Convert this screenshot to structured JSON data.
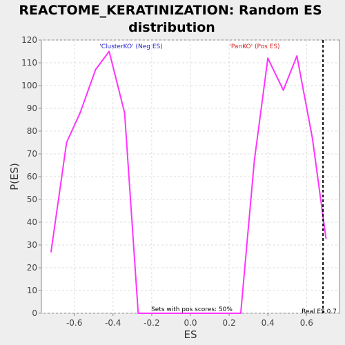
{
  "chart_data": {
    "type": "line",
    "title_line1": "REACTOME_KERATINIZATION: Random ES",
    "title_line2": "distribution",
    "xlabel": "ES",
    "ylabel": "P(ES)",
    "xlim": [
      -0.77,
      0.77
    ],
    "ylim": [
      0,
      120
    ],
    "x_ticks": [
      -0.6,
      -0.4,
      -0.2,
      0.0,
      0.2,
      0.4,
      0.6
    ],
    "x_tick_labels": [
      "-0.6",
      "-0.4",
      "-0.2",
      "0.0",
      "0.2",
      "0.4",
      "0.6"
    ],
    "y_ticks": [
      0,
      10,
      20,
      30,
      40,
      50,
      60,
      70,
      80,
      90,
      100,
      110,
      120
    ],
    "y_tick_labels": [
      "0",
      "10",
      "20",
      "30",
      "40",
      "50",
      "60",
      "70",
      "80",
      "90",
      "100",
      "110",
      "120"
    ],
    "grid": true,
    "series": [
      {
        "color": "#ff33ff",
        "x": [
          -0.72,
          -0.64,
          -0.57,
          -0.49,
          -0.42,
          -0.34,
          -0.27,
          -0.19,
          -0.12,
          -0.04,
          0.03,
          0.11,
          0.18,
          0.26,
          0.33,
          0.4,
          0.48,
          0.55,
          0.63,
          0.7
        ],
        "y": [
          27,
          75,
          88,
          107,
          115,
          88,
          0,
          0,
          0,
          0,
          0,
          0,
          0,
          0,
          67,
          112,
          98,
          113,
          77,
          33
        ]
      }
    ],
    "real_es": 0.685,
    "annotations": {
      "neg_label": "'ClusterKO' (Neg ES)",
      "neg_color": "#2222cc",
      "pos_label": "'PanKO' (Pos ES)",
      "pos_color": "#dd2222",
      "pos_scores": "Sets with pos scores: 50%",
      "real_es_label": "Real ES 0.7"
    }
  }
}
